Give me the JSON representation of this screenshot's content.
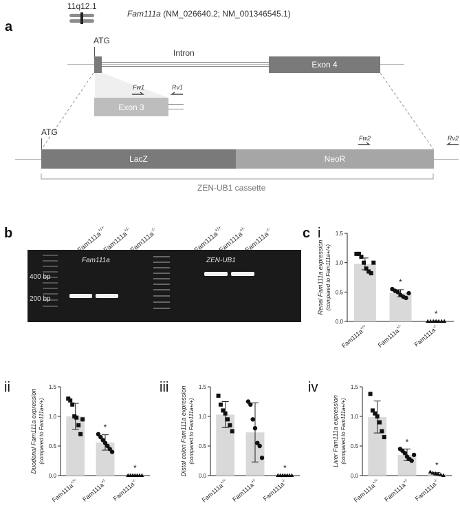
{
  "panel_a": {
    "letter": "a",
    "chromosome_band": "11q12.1",
    "gene_title": "Fam111a",
    "gene_accessions": "(NM_026640.2; NM_001346545.1)",
    "atg_label_top": "ATG",
    "intron_label": "Intron",
    "exon4_label": "Exon 4",
    "exon3_label": "Exon 3",
    "fw1_label": "Fw1",
    "rv1_label": "Rv1",
    "atg_label_bottom": "ATG",
    "fw2_label": "Fw2",
    "rv2_label": "Rv2",
    "lacz_label": "LacZ",
    "neor_label": "NeoR",
    "cassette_label": "ZEN-UB1 cassette",
    "colors": {
      "dark_box": "#7a7a7a",
      "mid_box": "#a6a6a6",
      "light_box": "#bdbdbd",
      "line": "#b5b5b5"
    }
  },
  "panel_b": {
    "letter": "b",
    "lanes": [
      "Fam111a+/+",
      "Fam111a+/-",
      "Fam111a-/-",
      "Fam111a+/+",
      "Fam111a+/-",
      "Fam111a-/-"
    ],
    "lane_base": "Fam111a",
    "lane_sups": [
      "+/+",
      "+/-",
      "-/-",
      "+/+",
      "+/-",
      "-/-"
    ],
    "gel_label_left": "Fam111a",
    "gel_label_right": "ZEN-UB1",
    "marker_400": "400 bp",
    "marker_200": "200 bp"
  },
  "panel_c": {
    "letter": "c",
    "categories": [
      "Fam111a+/+",
      "Fam111a+/-",
      "Fam111a-/-"
    ],
    "cat_base": "Fam111a",
    "cat_sups": [
      "+/+",
      "+/-",
      "-/-"
    ],
    "ylabel_suffix": "(compared to Fam111a+/+)",
    "yticks": [
      "0.0",
      "0.5",
      "1.0",
      "1.5"
    ],
    "significance": "*"
  },
  "chart_data": [
    {
      "type": "bar",
      "panel": "i",
      "ylabel": "Renal Fam111a expression",
      "categories": [
        "Fam111a+/+",
        "Fam111a+/-",
        "Fam111a-/-"
      ],
      "values": [
        0.98,
        0.48,
        0.0
      ],
      "errors": [
        0.1,
        0.06,
        0.01
      ],
      "significant": [
        false,
        true,
        true
      ],
      "ylim": [
        0,
        1.5
      ],
      "markers": [
        "square",
        "circle",
        "triangle"
      ],
      "points": [
        [
          1.15,
          1.15,
          1.1,
          1.0,
          0.9,
          0.85,
          0.82,
          1.0
        ],
        [
          0.55,
          0.52,
          0.5,
          0.45,
          0.42,
          0.4,
          0.48
        ],
        [
          0.0,
          0.0,
          0.0,
          0.0,
          0.0,
          0.0,
          0.0
        ]
      ]
    },
    {
      "type": "bar",
      "panel": "ii",
      "ylabel": "Duodenal Fam111a expression",
      "categories": [
        "Fam111a+/+",
        "Fam111a+/-",
        "Fam111a-/-"
      ],
      "values": [
        1.0,
        0.56,
        0.0
      ],
      "errors": [
        0.22,
        0.13,
        0.01
      ],
      "significant": [
        false,
        true,
        true
      ],
      "ylim": [
        0,
        1.5
      ],
      "markers": [
        "square",
        "circle",
        "triangle"
      ],
      "points": [
        [
          1.3,
          1.27,
          1.2,
          1.0,
          0.98,
          0.85,
          0.7,
          0.95
        ],
        [
          0.7,
          0.65,
          0.6,
          0.55,
          0.5,
          0.45,
          0.4
        ],
        [
          0.0,
          0.0,
          0.0,
          0.0,
          0.0,
          0.0,
          0.0
        ]
      ]
    },
    {
      "type": "bar",
      "panel": "iii",
      "ylabel": "Distal colon Fam111a expression",
      "categories": [
        "Fam111a+/+",
        "Fam111a+/-",
        "Fam111a-/-"
      ],
      "values": [
        1.03,
        0.73,
        0.0
      ],
      "errors": [
        0.22,
        0.5,
        0.01
      ],
      "significant": [
        false,
        false,
        true
      ],
      "ylim": [
        0,
        1.5
      ],
      "markers": [
        "square",
        "circle",
        "triangle"
      ],
      "points": [
        [
          1.35,
          1.2,
          1.1,
          1.05,
          0.95,
          0.85,
          0.75
        ],
        [
          1.25,
          1.2,
          0.95,
          0.8,
          0.55,
          0.5,
          0.3
        ],
        [
          0.0,
          0.0,
          0.0,
          0.0,
          0.0,
          0.0,
          0.0
        ]
      ]
    },
    {
      "type": "bar",
      "panel": "iv",
      "ylabel": "Liver Fam111a expression",
      "categories": [
        "Fam111a+/+",
        "Fam111a+/-",
        "Fam111a-/-"
      ],
      "values": [
        0.99,
        0.35,
        0.03
      ],
      "errors": [
        0.27,
        0.1,
        0.02
      ],
      "significant": [
        false,
        true,
        true
      ],
      "ylim": [
        0,
        1.5
      ],
      "markers": [
        "square",
        "circle",
        "triangle"
      ],
      "points": [
        [
          1.38,
          1.1,
          1.05,
          1.0,
          0.9,
          0.75,
          0.65
        ],
        [
          0.45,
          0.42,
          0.38,
          0.32,
          0.28,
          0.25,
          0.35
        ],
        [
          0.06,
          0.04,
          0.03,
          0.02,
          0.01,
          0.0
        ]
      ]
    }
  ]
}
